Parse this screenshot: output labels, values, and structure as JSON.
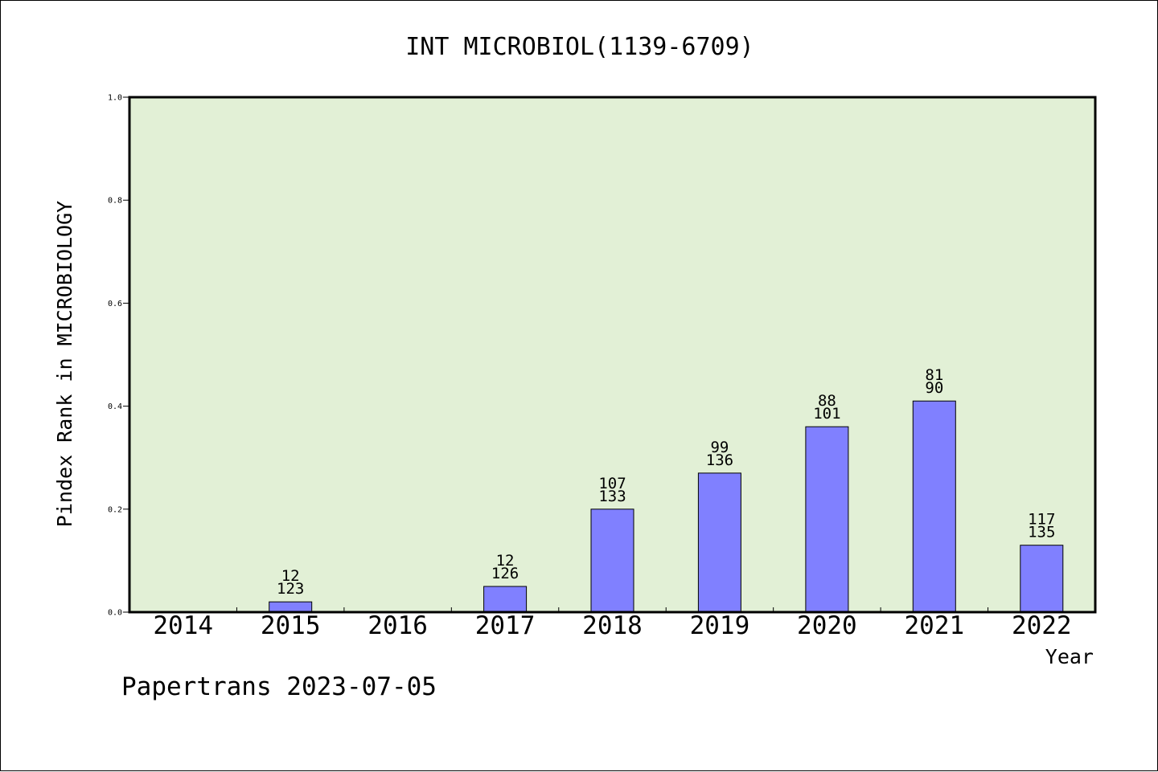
{
  "chart_data": {
    "type": "bar",
    "title": "INT MICROBIOL(1139-6709)",
    "xlabel": "Year",
    "ylabel": "Pindex Rank in MICROBIOLOGY",
    "ylim": [
      0,
      1.0
    ],
    "yticks": [
      "0.0",
      "0.2",
      "0.4",
      "0.6",
      "0.8",
      "1.0"
    ],
    "categories": [
      "2014",
      "2015",
      "2016",
      "2017",
      "2018",
      "2019",
      "2020",
      "2021",
      "2022"
    ],
    "values": [
      null,
      0.02,
      null,
      0.05,
      0.2,
      0.27,
      0.36,
      0.41,
      0.13
    ],
    "labels_top": [
      "",
      "12",
      "",
      "12",
      "107",
      "99",
      "88",
      "81",
      "117"
    ],
    "labels_bottom": [
      "",
      "123",
      "",
      "126",
      "133",
      "136",
      "101",
      "90",
      "135"
    ],
    "grid": false,
    "colors": {
      "plot_background": "#e2f0d6",
      "bar_fill": "#8080ff",
      "bar_stroke": "#000000",
      "axis": "#000000"
    }
  },
  "footer": {
    "text": "Papertrans 2023-07-05"
  }
}
